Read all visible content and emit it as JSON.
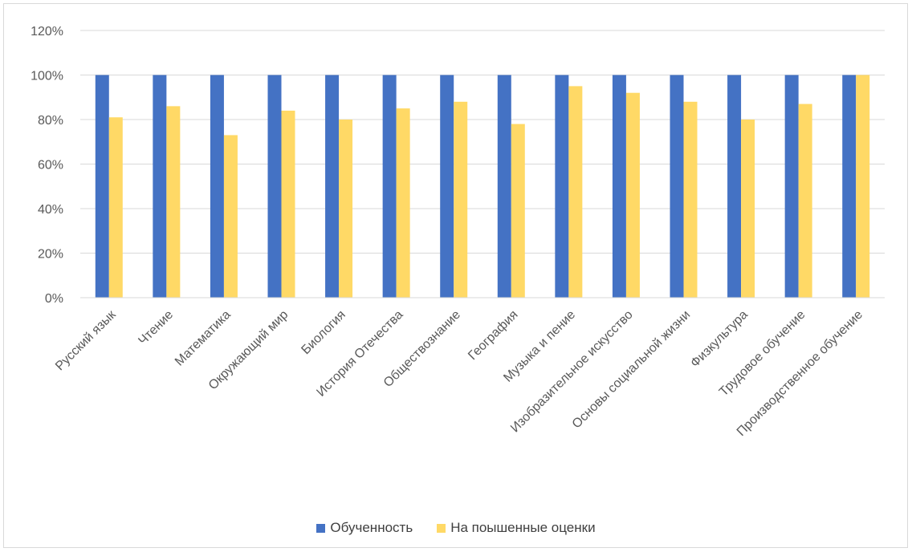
{
  "chart_data": {
    "type": "bar",
    "categories": [
      "Русский язык",
      "Чтение",
      "Математика",
      "Окружающий мир",
      "Биология",
      "История Отечества",
      "Обществознание",
      "География",
      "Музыка и пение",
      "Изобразительное искусство",
      "Основы социальной жизни",
      "Физкультура",
      "Трудовое обучение",
      "Производственное обучение"
    ],
    "series": [
      {
        "name": "Обученность",
        "color": "#4472c4",
        "values": [
          100,
          100,
          100,
          100,
          100,
          100,
          100,
          100,
          100,
          100,
          100,
          100,
          100,
          100
        ]
      },
      {
        "name": "На поышенные оценки",
        "color": "#ffd966",
        "values": [
          81,
          86,
          73,
          84,
          80,
          85,
          88,
          78,
          95,
          92,
          88,
          80,
          87,
          100
        ]
      }
    ],
    "yticks": [
      "0%",
      "20%",
      "40%",
      "60%",
      "80%",
      "100%",
      "120%"
    ],
    "ylim": [
      0,
      120
    ],
    "grid": true,
    "legend_position": "bottom"
  }
}
